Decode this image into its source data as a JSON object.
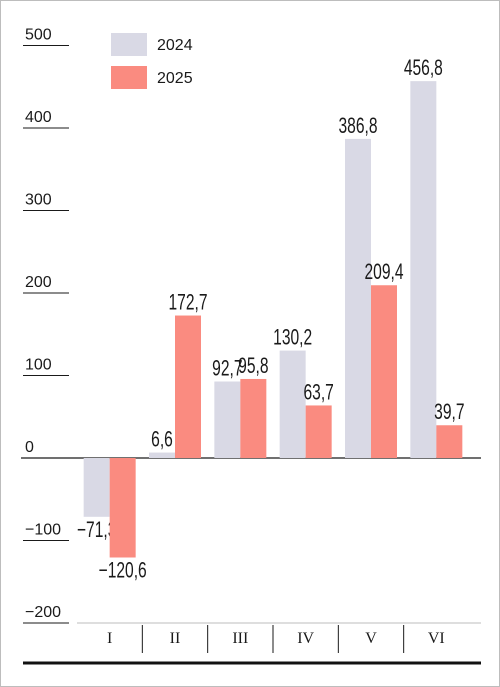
{
  "chart_data": {
    "type": "bar",
    "categories": [
      "I",
      "II",
      "III",
      "IV",
      "V",
      "VI"
    ],
    "series": [
      {
        "name": "2024",
        "color": "#d9d9e5",
        "values": [
          -71.3,
          6.6,
          92.7,
          130.2,
          386.8,
          456.8
        ],
        "labels": [
          "−71,3",
          "6,6",
          "92,7",
          "130,2",
          "386,8",
          "456,8"
        ]
      },
      {
        "name": "2025",
        "color": "#fa8b80",
        "values": [
          -120.6,
          172.7,
          95.8,
          63.7,
          209.4,
          39.7
        ],
        "labels": [
          "−120,6",
          "172,7",
          "95,8",
          "63,7",
          "209,4",
          "39,7"
        ]
      }
    ],
    "yticks": [
      500,
      400,
      300,
      200,
      100,
      0,
      -100,
      -200
    ],
    "ytick_labels": [
      "500",
      "400",
      "300",
      "200",
      "100",
      "0",
      "−100",
      "−200"
    ],
    "ylim": [
      -200,
      500
    ],
    "legend_position": "top-left",
    "title": "",
    "xlabel": "",
    "ylabel": ""
  }
}
